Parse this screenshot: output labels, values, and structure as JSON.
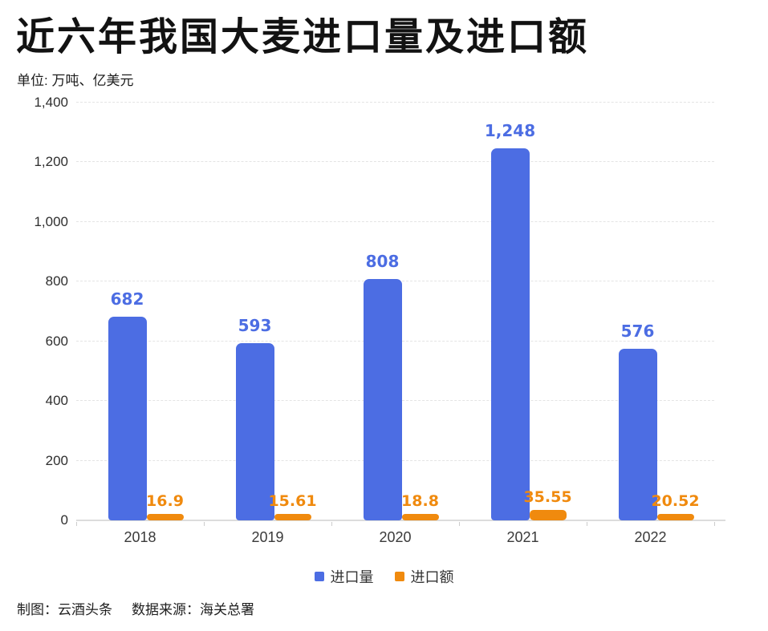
{
  "header": {
    "title": "近六年我国大麦进口量及进口额",
    "unit_note": "单位: 万吨、亿美元"
  },
  "legend": [
    {
      "label": "进口量",
      "color": "#4C6DE3"
    },
    {
      "label": "进口额",
      "color": "#F08A0E"
    }
  ],
  "footer": {
    "credit": "制图：云酒头条",
    "source": "数据来源：海关总署"
  },
  "colors": {
    "bar_blue": "#4C6DE3",
    "bar_orange": "#F08A0E",
    "grid": "#e4e4e4",
    "axis_line": "#dcdcdc",
    "tick_text": "#2e2e2e",
    "title_text": "#121212"
  },
  "chart_data": {
    "type": "bar",
    "title": "近六年我国大麦进口量及进口额",
    "subtitle": "单位: 万吨、亿美元",
    "categories": [
      "2018",
      "2019",
      "2020",
      "2021",
      "2022"
    ],
    "series": [
      {
        "name": "进口量",
        "color": "#4C6DE3",
        "values": [
          682,
          593,
          808,
          1248,
          576
        ],
        "labels": [
          "682",
          "593",
          "808",
          "1,248",
          "576"
        ]
      },
      {
        "name": "进口额",
        "color": "#F08A0E",
        "values": [
          16.9,
          15.61,
          18.8,
          35.55,
          20.52
        ],
        "labels": [
          "16.9",
          "15.61",
          "18.8",
          "35.55",
          "20.52"
        ]
      }
    ],
    "xlabel": "",
    "ylabel": "",
    "ylim": [
      0,
      1400
    ],
    "yticks": [
      0,
      200,
      400,
      600,
      800,
      1000,
      1200,
      1400
    ],
    "ytick_labels": [
      "0",
      "200",
      "400",
      "600",
      "800",
      "1,000",
      "1,200",
      "1,400"
    ],
    "grid": "horizontal-dashed",
    "legend_position": "bottom"
  }
}
